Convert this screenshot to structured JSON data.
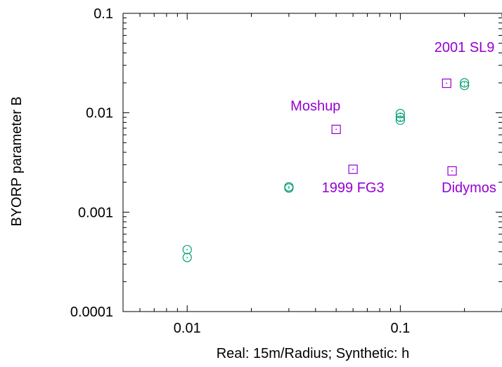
{
  "chart_data": {
    "type": "scatter",
    "title": "",
    "xlabel": "Real: 15m/Radius; Synthetic: h",
    "ylabel": "BYORP parameter B",
    "x_scale": "log",
    "y_scale": "log",
    "xlim": [
      0.005,
      0.3
    ],
    "ylim": [
      0.0001,
      0.1
    ],
    "grid": false,
    "legend": "none",
    "x_ticks": [
      {
        "value": 0.01,
        "label": "0.01"
      },
      {
        "value": 0.1,
        "label": "0.1"
      }
    ],
    "y_ticks": [
      {
        "value": 0.0001,
        "label": "0.0001"
      },
      {
        "value": 0.001,
        "label": "0.001"
      },
      {
        "value": 0.01,
        "label": "0.01"
      },
      {
        "value": 0.1,
        "label": "0.1"
      }
    ],
    "series": [
      {
        "marker": "circle",
        "color": "#009e73",
        "points": [
          {
            "x": 0.01,
            "y": 0.00042
          },
          {
            "x": 0.01,
            "y": 0.00035
          },
          {
            "x": 0.03,
            "y": 0.0018
          },
          {
            "x": 0.03,
            "y": 0.00175
          },
          {
            "x": 0.1,
            "y": 0.0098
          },
          {
            "x": 0.1,
            "y": 0.009
          },
          {
            "x": 0.1,
            "y": 0.0084
          },
          {
            "x": 0.2,
            "y": 0.02
          },
          {
            "x": 0.2,
            "y": 0.0188
          }
        ]
      },
      {
        "marker": "square",
        "color": "#9400d3",
        "points": [
          {
            "x": 0.05,
            "y": 0.0068,
            "label": "Moshup"
          },
          {
            "x": 0.06,
            "y": 0.0027,
            "label": "1999 FG3"
          },
          {
            "x": 0.165,
            "y": 0.0198,
            "label": "2001 SL9"
          },
          {
            "x": 0.175,
            "y": 0.0026,
            "label": "Didymos"
          }
        ]
      }
    ],
    "annotations": [
      {
        "text": "2001 SL9",
        "x": 0.2,
        "y": 0.041,
        "color": "#9400d3"
      },
      {
        "text": "Moshup",
        "x": 0.04,
        "y": 0.0105,
        "color": "#9400d3"
      },
      {
        "text": "1999 FG3",
        "x": 0.06,
        "y": 0.00158,
        "color": "#9400d3"
      },
      {
        "text": "Didymos",
        "x": 0.21,
        "y": 0.00158,
        "color": "#9400d3"
      }
    ]
  }
}
